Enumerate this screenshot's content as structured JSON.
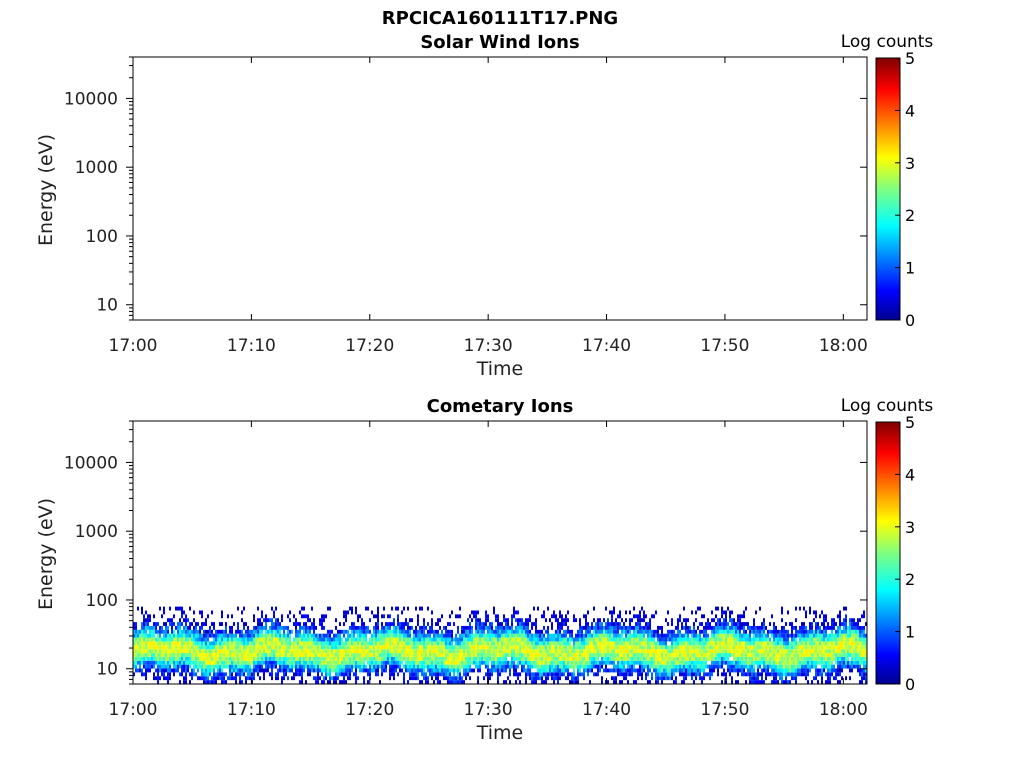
{
  "figure": {
    "title": "RPCICA160111T17.PNG"
  },
  "chart_data": [
    {
      "type": "heatmap",
      "title": "Solar Wind Ions",
      "xlabel": "Time",
      "ylabel": "Energy (eV)",
      "y_scale": "log",
      "ylim": [
        6,
        40000
      ],
      "x_range": [
        "17:00",
        "18:02"
      ],
      "x_ticks": [
        "17:00",
        "17:10",
        "17:20",
        "17:30",
        "17:40",
        "17:50",
        "18:00"
      ],
      "y_ticks": [
        "10",
        "100",
        "1000",
        "10000"
      ],
      "colorbar": {
        "label": "Log counts",
        "range": [
          0,
          5
        ],
        "ticks": [
          "0",
          "1",
          "2",
          "3",
          "4",
          "5"
        ],
        "colormap": "jet"
      },
      "data_description_level": "empty",
      "cells": []
    },
    {
      "type": "heatmap",
      "title": "Cometary Ions",
      "xlabel": "Time",
      "ylabel": "Energy (eV)",
      "y_scale": "log",
      "ylim": [
        6,
        40000
      ],
      "x_range": [
        "17:00",
        "18:02"
      ],
      "x_ticks": [
        "17:00",
        "17:10",
        "17:20",
        "17:30",
        "17:40",
        "17:50",
        "18:00"
      ],
      "y_ticks": [
        "10",
        "100",
        "1000",
        "10000"
      ],
      "colorbar": {
        "label": "Log counts",
        "range": [
          0,
          5
        ],
        "ticks": [
          "0",
          "1",
          "2",
          "3",
          "4",
          "5"
        ],
        "colormap": "jet"
      },
      "signal": {
        "energy_min_eV": 6,
        "energy_max_eV": 80,
        "peak_energy_eV": 18,
        "peak_log_counts": 3.0,
        "typical_log_counts": 1.8
      }
    }
  ]
}
